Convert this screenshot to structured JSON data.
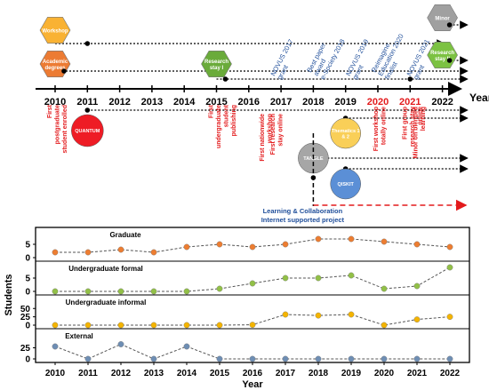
{
  "timeline": {
    "year_label": "Year",
    "years": [
      "2010",
      "2011",
      "2012",
      "2013",
      "2014",
      "2015",
      "2016",
      "2017",
      "2018",
      "2019",
      "2020",
      "2021",
      "2022"
    ],
    "highlight_years": [
      "2020",
      "2021"
    ],
    "hexagons": [
      {
        "label": "Workshop",
        "year": 2010,
        "color": "#f9b233"
      },
      {
        "label": "Academic degrees",
        "year": 2010,
        "color": "#ec7b33"
      },
      {
        "label": "Research stay I",
        "year": 2015,
        "color": "#6aab3a"
      },
      {
        "label": "Minor",
        "year": 2022,
        "color": "#a0a0a0"
      },
      {
        "label": "Research stay II",
        "year": 2022,
        "color": "#7cc242"
      }
    ],
    "circles": [
      {
        "label": "QUANTUM",
        "year": 2011,
        "color": "#ee1c25"
      },
      {
        "label": "Thematics 1 & 2",
        "year": 2019,
        "color": "#f9cf58"
      },
      {
        "label": "TANGLE",
        "year": 2018,
        "color": "#a6a6a6"
      },
      {
        "label": "QISKIT",
        "year": 2019,
        "color": "#5b8fd6"
      }
    ],
    "top_annotations": [
      {
        "text": "NOVUS 2017 grant",
        "year": 2017
      },
      {
        "text": "Best paper award e-Society 2018",
        "year": 2018
      },
      {
        "text": "NOVUS 2019 grant",
        "year": 2019
      },
      {
        "text": "Reimagine Education 2020 finalist",
        "year": 2020
      },
      {
        "text": "NOVUS 2021 grant",
        "year": 2021
      }
    ],
    "bottom_annotations": [
      {
        "text": "First postgraduate student enrolled",
        "year": 2010
      },
      {
        "text": "First undergraduate student publishing",
        "year": 2015
      },
      {
        "text": "First nationwide workshop",
        "year": 2017
      },
      {
        "text": "First research stay online",
        "year": 2017
      },
      {
        "text": "First workshop totally online",
        "year": 2020
      },
      {
        "text": "First group research stay online",
        "year": 2021
      },
      {
        "text": "Minor on blended learning",
        "year": 2021
      }
    ],
    "project_label_1": "Learning & Collaboration",
    "project_label_2": "Internet supported project"
  },
  "chart_data": {
    "type": "line",
    "x": [
      2010,
      2011,
      2012,
      2013,
      2014,
      2015,
      2016,
      2017,
      2018,
      2019,
      2020,
      2021,
      2022
    ],
    "xlabel": "Year",
    "ylabel": "Students",
    "series": [
      {
        "name": "Graduate",
        "color": "#ed7d31",
        "ylim": [
          0,
          10
        ],
        "ticks": [
          0,
          5
        ],
        "values": [
          2,
          2,
          3,
          2,
          4,
          5,
          4,
          5,
          7,
          7,
          6,
          5,
          4
        ]
      },
      {
        "name": "Undergraduate formal",
        "color": "#92c047",
        "ylim": [
          0,
          10
        ],
        "ticks": [
          0,
          5
        ],
        "values": [
          0,
          0,
          0,
          0,
          0,
          1,
          3,
          5,
          5,
          6,
          1,
          2,
          9
        ]
      },
      {
        "name": "Undergraduate informal",
        "color": "#f4b400",
        "ylim": [
          0,
          80
        ],
        "ticks": [
          0,
          25,
          50
        ],
        "values": [
          0,
          0,
          0,
          0,
          0,
          0,
          1,
          32,
          29,
          32,
          0,
          17,
          25
        ]
      },
      {
        "name": "External",
        "color": "#6e8eb4",
        "ylim": [
          0,
          60
        ],
        "ticks": [
          0,
          25
        ],
        "values": [
          28,
          0,
          33,
          0,
          28,
          0,
          0,
          0,
          0,
          0,
          0,
          0,
          0
        ]
      }
    ]
  }
}
